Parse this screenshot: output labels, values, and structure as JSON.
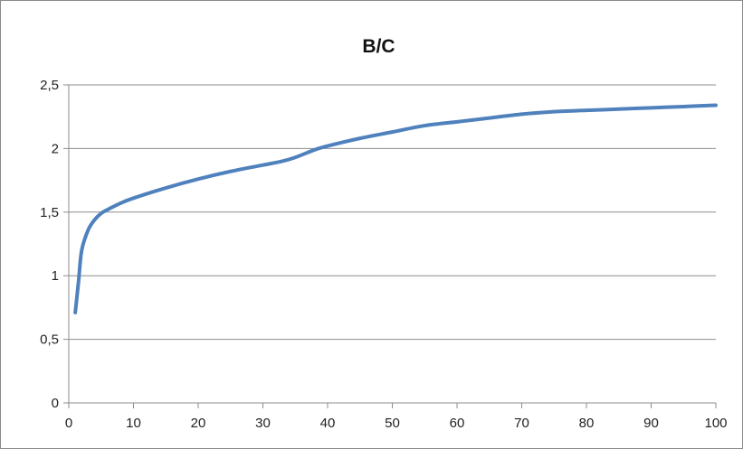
{
  "chart_data": {
    "type": "line",
    "title": "B/C",
    "xlabel": "",
    "ylabel": "",
    "xlim": [
      0,
      100
    ],
    "ylim": [
      0,
      2.5
    ],
    "x_ticks": [
      "0",
      "10",
      "20",
      "30",
      "40",
      "50",
      "60",
      "70",
      "80",
      "90",
      "100"
    ],
    "y_ticks": [
      "0",
      "0,5",
      "1",
      "1,5",
      "2",
      "2,5"
    ],
    "grid": "horizontal",
    "legend": "none",
    "series": [
      {
        "color": "#4F81BD",
        "x": [
          1,
          1.5,
          2,
          3,
          4,
          5,
          6,
          8,
          10,
          15,
          20,
          25,
          30,
          33,
          35,
          38,
          40,
          45,
          50,
          55,
          60,
          65,
          70,
          75,
          80,
          85,
          90,
          95,
          100
        ],
        "y": [
          0.71,
          0.95,
          1.2,
          1.36,
          1.44,
          1.49,
          1.52,
          1.57,
          1.61,
          1.69,
          1.76,
          1.82,
          1.87,
          1.9,
          1.93,
          1.99,
          2.02,
          2.08,
          2.13,
          2.18,
          2.21,
          2.24,
          2.27,
          2.29,
          2.3,
          2.31,
          2.32,
          2.33,
          2.34
        ]
      }
    ]
  }
}
